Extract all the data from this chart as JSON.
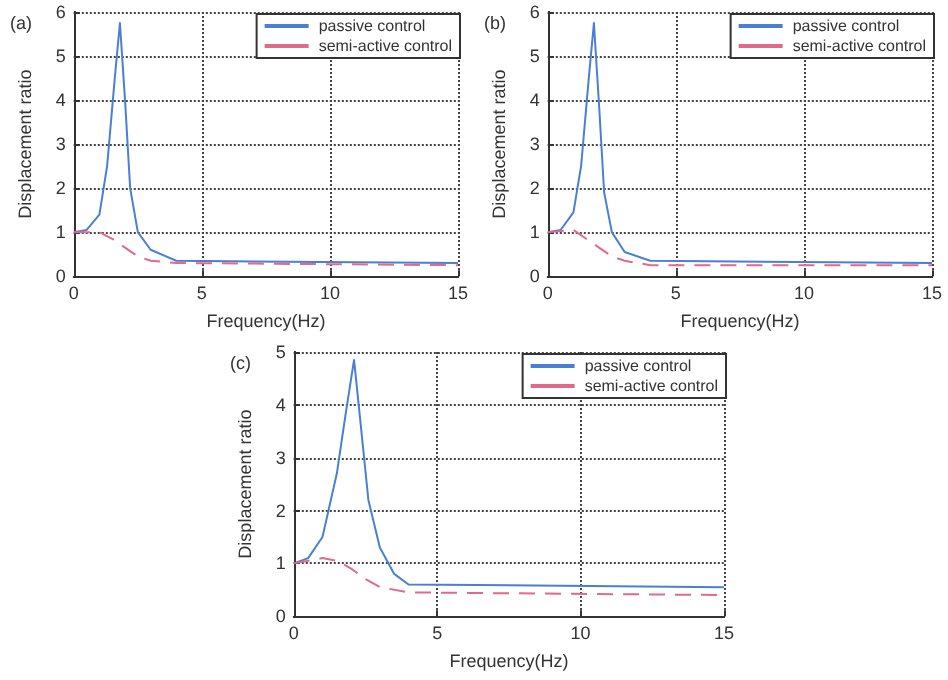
{
  "chart_data": [
    {
      "type": "line",
      "title": "(a)",
      "xlabel": "Frequency(Hz)",
      "ylabel": "Displacement ratio",
      "xlim": [
        0,
        15
      ],
      "xticks": [
        0,
        5,
        10,
        15
      ],
      "ylim": [
        0,
        6
      ],
      "yticks": [
        0,
        1,
        2,
        3,
        4,
        5,
        6
      ],
      "grid": true,
      "legend": "top right",
      "marker": "none",
      "series": [
        {
          "name": "passive control",
          "color": "#4a7fd4",
          "line_style": "solid",
          "x": [
            0,
            0.5,
            1,
            1.3,
            1.6,
            1.8,
            2,
            2.2,
            2.5,
            3,
            4,
            15
          ],
          "values": [
            1,
            1.05,
            1.4,
            2.5,
            4.5,
            5.75,
            4,
            2,
            1,
            0.6,
            0.35,
            0.3
          ]
        },
        {
          "name": "semi-active control",
          "color": "#e06a8a",
          "line_style": "dashed",
          "x": [
            0,
            1,
            1.5,
            2,
            2.5,
            3,
            4,
            15
          ],
          "values": [
            1,
            1,
            0.85,
            0.65,
            0.45,
            0.35,
            0.3,
            0.25
          ]
        }
      ]
    },
    {
      "type": "line",
      "title": "(b)",
      "xlabel": "Frequency(Hz)",
      "ylabel": "Displacement ratio",
      "xlim": [
        0,
        15
      ],
      "xticks": [
        0,
        5,
        10,
        15
      ],
      "ylim": [
        0,
        6
      ],
      "yticks": [
        0,
        1,
        2,
        3,
        4,
        5,
        6
      ],
      "grid": true,
      "legend": "top right",
      "marker": "none",
      "series": [
        {
          "name": "passive control",
          "color": "#4a7fd4",
          "line_style": "solid",
          "x": [
            0,
            0.5,
            1,
            1.3,
            1.6,
            1.8,
            2,
            2.2,
            2.5,
            3,
            4,
            15
          ],
          "values": [
            1,
            1.05,
            1.45,
            2.5,
            4.5,
            5.75,
            3.9,
            1.9,
            1,
            0.55,
            0.35,
            0.3
          ]
        },
        {
          "name": "semi-active control",
          "color": "#e06a8a",
          "line_style": "dashed",
          "x": [
            0,
            1,
            1.5,
            2,
            2.5,
            3,
            4,
            15
          ],
          "values": [
            1,
            1.05,
            0.85,
            0.65,
            0.45,
            0.35,
            0.25,
            0.25
          ]
        }
      ]
    },
    {
      "type": "line",
      "title": "(c)",
      "xlabel": "Frequency(Hz)",
      "ylabel": "Displacement ratio",
      "xlim": [
        0,
        15
      ],
      "xticks": [
        0,
        5,
        10,
        15
      ],
      "ylim": [
        0,
        5
      ],
      "yticks": [
        0,
        1,
        2,
        3,
        4,
        5
      ],
      "grid": true,
      "legend": "top right",
      "marker": "none",
      "series": [
        {
          "name": "passive control",
          "color": "#4a7fd4",
          "line_style": "solid",
          "x": [
            0,
            0.5,
            1,
            1.5,
            1.8,
            2.1,
            2.3,
            2.6,
            3,
            3.5,
            4,
            15
          ],
          "values": [
            1,
            1.1,
            1.5,
            2.7,
            3.8,
            4.85,
            3.8,
            2.2,
            1.3,
            0.8,
            0.6,
            0.55
          ]
        },
        {
          "name": "semi-active control",
          "color": "#e06a8a",
          "line_style": "dashed",
          "x": [
            0,
            1,
            1.5,
            2,
            2.5,
            3,
            4,
            15
          ],
          "values": [
            1,
            1.1,
            1.05,
            0.9,
            0.7,
            0.55,
            0.45,
            0.4
          ]
        }
      ]
    }
  ]
}
